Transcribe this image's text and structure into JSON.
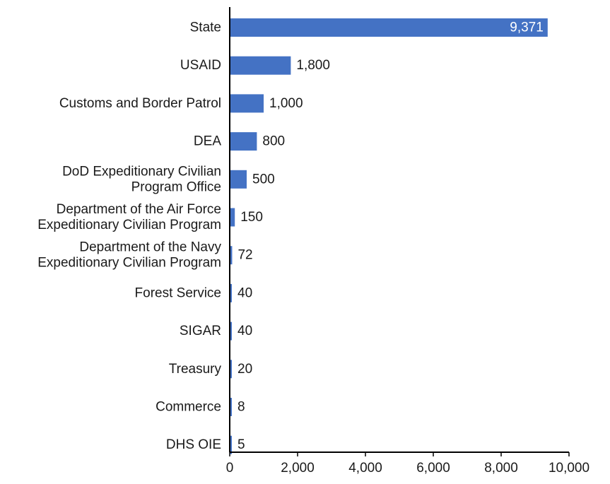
{
  "chart_data": {
    "type": "bar",
    "orientation": "horizontal",
    "categories": [
      [
        "State"
      ],
      [
        "USAID"
      ],
      [
        "Customs and Border Patrol"
      ],
      [
        "DEA"
      ],
      [
        "DoD Expeditionary Civilian",
        "Program Office"
      ],
      [
        "Department of the Air Force",
        "Expeditionary Civilian Program"
      ],
      [
        "Department of the Navy",
        "Expeditionary Civilian Program"
      ],
      [
        "Forest Service"
      ],
      [
        "SIGAR"
      ],
      [
        "Treasury"
      ],
      [
        "Commerce"
      ],
      [
        "DHS OIE"
      ]
    ],
    "values": [
      9371,
      1800,
      1000,
      800,
      500,
      150,
      72,
      40,
      40,
      20,
      8,
      5
    ],
    "value_labels": [
      "9,371",
      "1,800",
      "1,000",
      "800",
      "500",
      "150",
      "72",
      "40",
      "40",
      "20",
      "8",
      "5"
    ],
    "xlim": [
      0,
      10000
    ],
    "xticks": [
      0,
      2000,
      4000,
      6000,
      8000,
      10000
    ],
    "xtick_labels": [
      "0",
      "2,000",
      "4,000",
      "6,000",
      "8,000",
      "10,000"
    ],
    "grid": false,
    "bar_color": "#4472c4"
  }
}
